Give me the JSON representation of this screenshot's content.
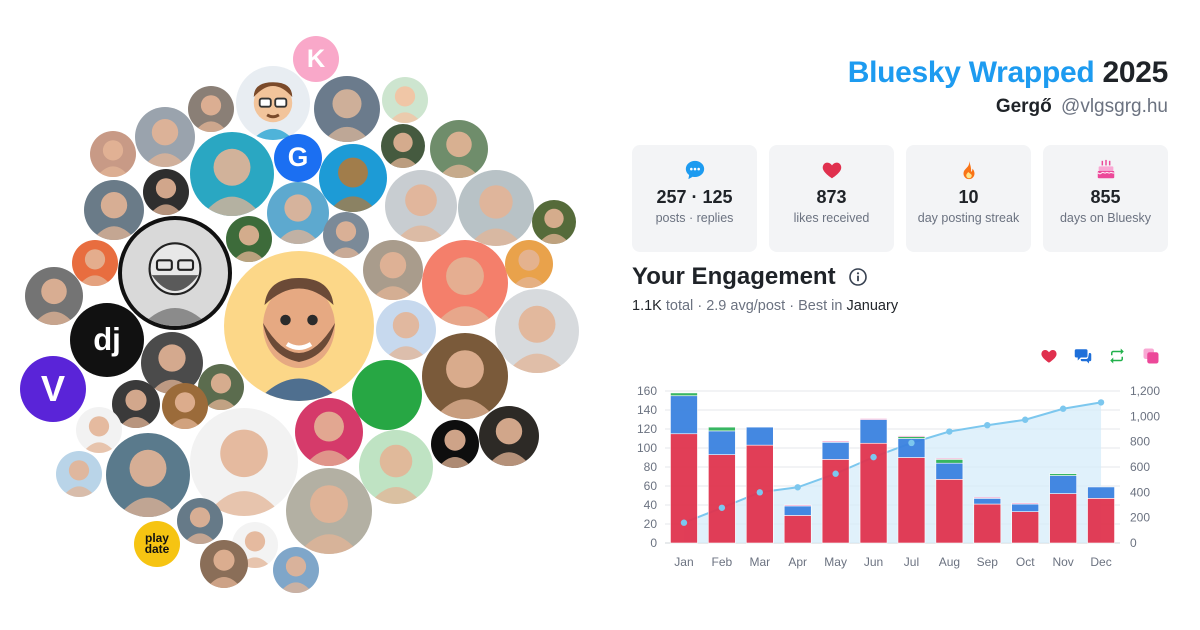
{
  "header": {
    "title_brand": "Bluesky Wrapped",
    "title_year": "2025",
    "name": "Gergő",
    "handle": "@vlgsgrg.hu"
  },
  "stats": [
    {
      "icon": "chat-bubble-icon",
      "value": "257 · 125",
      "label": "posts · replies",
      "color": "#1d9bf0"
    },
    {
      "icon": "heart-icon",
      "value": "873",
      "label": "likes received",
      "color": "#e0304e"
    },
    {
      "icon": "flame-icon",
      "value": "10",
      "label": "day posting streak",
      "color": "#f97316"
    },
    {
      "icon": "cake-icon",
      "value": "855",
      "label": "days on Bluesky",
      "color": "#ec4899"
    }
  ],
  "engagement": {
    "title": "Your Engagement",
    "total": "1.1K",
    "total_label": "total",
    "separator": "·",
    "avg": "2.9 avg/post",
    "best_label": "Best in",
    "best_month": "January"
  },
  "legend": [
    {
      "icon": "heart-icon",
      "color": "#e0304e"
    },
    {
      "icon": "replies-icon",
      "color": "#1e6fd9"
    },
    {
      "icon": "repost-icon",
      "color": "#22b14c"
    },
    {
      "icon": "quote-icon",
      "color": "#ec4899"
    }
  ],
  "colors": {
    "likes": "#e0344f",
    "replies": "#3b82e0",
    "reposts": "#2fb35a",
    "quotes": "#ec4899",
    "cumulative": "#7cc7ee",
    "brand": "#1d9bf0"
  },
  "chart_data": {
    "type": "bar",
    "stacked": true,
    "categories": [
      "Jan",
      "Feb",
      "Mar",
      "Apr",
      "May",
      "Jun",
      "Jul",
      "Aug",
      "Sep",
      "Oct",
      "Nov",
      "Dec"
    ],
    "series": [
      {
        "values": [
          115,
          93,
          103,
          29,
          88,
          105,
          90,
          67,
          41,
          33,
          52,
          47
        ]
      },
      {
        "values": [
          40,
          25,
          19,
          10,
          18,
          25,
          20,
          17,
          6,
          8,
          19,
          12
        ]
      },
      {
        "values": [
          3,
          4,
          0,
          0,
          0,
          0,
          2,
          4,
          0,
          0,
          2,
          0
        ]
      },
      {
        "values": [
          0,
          0,
          0,
          1,
          1,
          1,
          1,
          1,
          1,
          1,
          0,
          0
        ]
      }
    ],
    "line": {
      "axis": "right",
      "values": [
        160,
        278,
        400,
        440,
        547,
        678,
        790,
        880,
        930,
        973,
        1060,
        1110
      ]
    },
    "y_left": {
      "min": 0,
      "max": 160,
      "ticks": [
        "0",
        "20",
        "40",
        "60",
        "80",
        "100",
        "120",
        "140",
        "160"
      ]
    },
    "y_right": {
      "min": 0,
      "max": 1200,
      "ticks": [
        "0",
        "200",
        "400",
        "600",
        "800",
        "1,000",
        "1,200"
      ]
    },
    "grid": true
  },
  "avatars": [
    {
      "name": "avatar-kofi",
      "bg": "#f9a8c9",
      "fg": "#ffffff",
      "glyph": "K",
      "style": "letter"
    },
    {
      "name": "avatar-cartoon-glasses",
      "bg": "#e8edf2",
      "fg": "#f2c49b",
      "style": "face"
    },
    {
      "name": "avatar-man-sunglasses",
      "bg": "#6b7b8c",
      "fg": "#d9b59a",
      "style": "face"
    },
    {
      "name": "avatar-memoji-woman",
      "bg": "#cde5cf",
      "fg": "#f4c2a1",
      "style": "face"
    },
    {
      "name": "avatar-g-logo",
      "bg": "#1b6ff2",
      "fg": "#ffffff",
      "glyph": "G",
      "style": "letter"
    },
    {
      "name": "avatar-bear",
      "bg": "#1d9bd6",
      "fg": "#b07a3c",
      "style": "face"
    },
    {
      "name": "avatar-dj-logo",
      "bg": "#111111",
      "fg": "#ffffff",
      "glyph": "dj",
      "style": "letter"
    },
    {
      "name": "avatar-v-logo",
      "bg": "#5a24d8",
      "fg": "#ffffff",
      "glyph": "V",
      "style": "letter"
    },
    {
      "name": "avatar-memoji-main",
      "bg": "#fcd788",
      "fg": "#e6a982",
      "style": "face"
    },
    {
      "name": "avatar-green",
      "bg": "#27a744",
      "fg": "#27a744",
      "style": "plain"
    },
    {
      "name": "avatar-playdate",
      "bg": "#f6c412",
      "fg": "#111111",
      "glyph": "play date",
      "style": "letter"
    },
    {
      "name": "avatar-sketch",
      "bg": "#d9d9d9",
      "fg": "#333333",
      "style": "sketch"
    }
  ]
}
